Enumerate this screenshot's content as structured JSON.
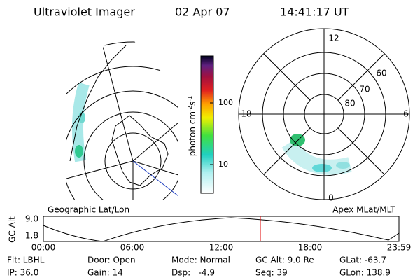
{
  "header": {
    "title": "Ultraviolet Imager",
    "date": "02 Apr 07",
    "time": "14:41:17 UT"
  },
  "left_map": {
    "label": "Geographic Lat/Lon"
  },
  "colorbar": {
    "label": "photon cm",
    "exp1": "-2",
    "unit2": "s",
    "exp2": "-1",
    "ticks": [
      "100",
      "10"
    ]
  },
  "polar_plot": {
    "label": "Apex MLat/MLT",
    "mlt_labels": {
      "top": "12",
      "left": "18",
      "right": "6",
      "bottom": "0"
    },
    "lat_labels": [
      "60",
      "70",
      "80"
    ]
  },
  "orbit_plot": {
    "y_label": "GC Alt",
    "yticks": [
      "9.0",
      "1.8"
    ],
    "xticks": [
      "00:00",
      "06:00",
      "12:00",
      "18:00",
      "23:59"
    ]
  },
  "footer": {
    "rows": [
      [
        "Flt: LBHL",
        "Door: Open",
        "Mode: Normal",
        "GC Alt: 9.0 Re",
        "GLat: -63.7"
      ],
      [
        "IP: 36.0",
        "Gain: 14",
        "Dsp:   -4.9",
        "Seq: 39",
        "GLon: 138.9"
      ]
    ]
  }
}
